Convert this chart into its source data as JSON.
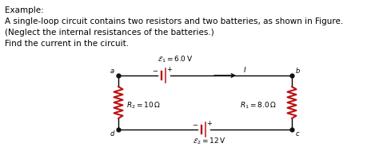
{
  "title_line1": "Example:",
  "title_line2": "A single-loop circuit contains two resistors and two batteries, as shown in Figure.",
  "title_line3": "(Neglect the internal resistances of the batteries.)",
  "title_line4": "Find the current in the circuit.",
  "bg_color": "#ffffff",
  "text_color": "#000000",
  "wire_color": "#000000",
  "resistor_color": "#bb1111",
  "battery_color": "#bb1111",
  "E1_label": "$\\mathcal{E}_1 = 6.0\\,\\mathrm{V}$",
  "E2_label": "$\\mathcal{E}_2 = 12\\,\\mathrm{V}$",
  "R1_label": "$R_1 = 8.0\\,\\Omega$",
  "R2_label": "$R_2 = 10\\,\\Omega$",
  "I_label": "$I$",
  "font_size_body": 7.5,
  "font_size_labels": 6.5,
  "font_size_corner": 6.0
}
